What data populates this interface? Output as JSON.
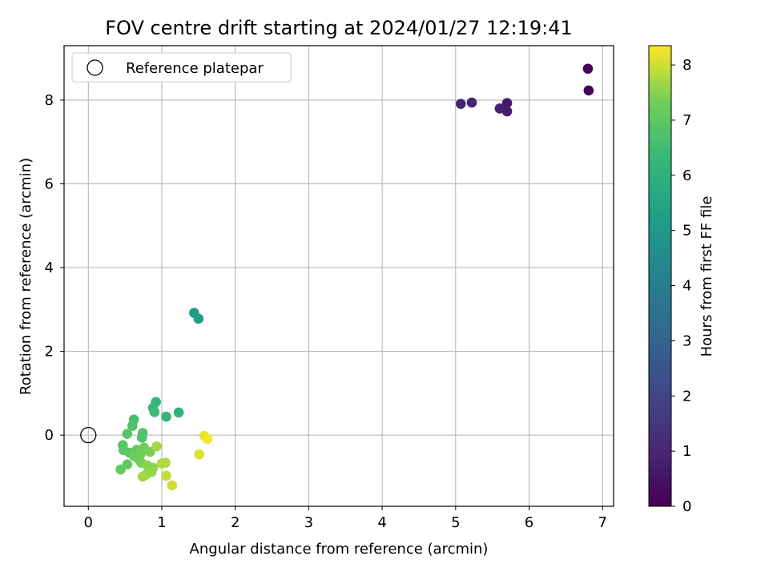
{
  "chart_data": {
    "type": "scatter",
    "title": "FOV centre drift starting at 2024/01/27 12:19:41",
    "xlabel": "Angular distance from reference (arcmin)",
    "ylabel": "Rotation from reference (arcmin)",
    "xlim": [
      -0.33,
      7.15
    ],
    "ylim": [
      -1.7,
      9.3
    ],
    "xticks": [
      0,
      1,
      2,
      3,
      4,
      5,
      6,
      7
    ],
    "yticks": [
      0,
      2,
      4,
      6,
      8
    ],
    "grid": true,
    "legend": {
      "position": "top-left",
      "entries": [
        "Reference platepar"
      ]
    },
    "reference_point": {
      "x": 0,
      "y": 0,
      "label": "Reference platepar"
    },
    "colorbar": {
      "label": "Hours from first FF file",
      "colormap": "viridis",
      "range": [
        0,
        8.35
      ],
      "ticks": [
        0,
        1,
        2,
        3,
        4,
        5,
        6,
        7,
        8
      ]
    },
    "points": [
      {
        "x": 6.8,
        "y": 8.75,
        "c": 0.05
      },
      {
        "x": 6.81,
        "y": 8.23,
        "c": 0.1
      },
      {
        "x": 5.7,
        "y": 7.93,
        "c": 0.7
      },
      {
        "x": 5.7,
        "y": 7.73,
        "c": 0.75
      },
      {
        "x": 5.6,
        "y": 7.8,
        "c": 0.8
      },
      {
        "x": 5.22,
        "y": 7.94,
        "c": 0.9
      },
      {
        "x": 5.07,
        "y": 7.91,
        "c": 0.95
      },
      {
        "x": 1.44,
        "y": 2.92,
        "c": 5.1
      },
      {
        "x": 1.5,
        "y": 2.78,
        "c": 5.2
      },
      {
        "x": 1.23,
        "y": 0.54,
        "c": 6.0
      },
      {
        "x": 1.06,
        "y": 0.44,
        "c": 6.1
      },
      {
        "x": 0.92,
        "y": 0.79,
        "c": 6.2
      },
      {
        "x": 0.88,
        "y": 0.65,
        "c": 6.3
      },
      {
        "x": 0.9,
        "y": 0.55,
        "c": 6.4
      },
      {
        "x": 0.62,
        "y": 0.37,
        "c": 6.6
      },
      {
        "x": 0.6,
        "y": 0.22,
        "c": 6.7
      },
      {
        "x": 0.74,
        "y": 0.05,
        "c": 6.8
      },
      {
        "x": 0.73,
        "y": -0.06,
        "c": 6.8
      },
      {
        "x": 0.53,
        "y": 0.03,
        "c": 6.9
      },
      {
        "x": 0.47,
        "y": -0.24,
        "c": 6.9
      },
      {
        "x": 0.48,
        "y": -0.36,
        "c": 7.0
      },
      {
        "x": 0.56,
        "y": -0.42,
        "c": 7.0
      },
      {
        "x": 0.66,
        "y": -0.35,
        "c": 7.1
      },
      {
        "x": 0.53,
        "y": -0.7,
        "c": 7.1
      },
      {
        "x": 0.44,
        "y": -0.82,
        "c": 7.1
      },
      {
        "x": 0.62,
        "y": -0.5,
        "c": 7.2
      },
      {
        "x": 0.69,
        "y": -0.58,
        "c": 7.2
      },
      {
        "x": 0.71,
        "y": -0.46,
        "c": 7.3
      },
      {
        "x": 0.76,
        "y": -0.3,
        "c": 7.3
      },
      {
        "x": 0.84,
        "y": -0.4,
        "c": 7.4
      },
      {
        "x": 0.72,
        "y": -0.66,
        "c": 7.4
      },
      {
        "x": 0.8,
        "y": -0.72,
        "c": 7.5
      },
      {
        "x": 0.88,
        "y": -0.78,
        "c": 7.5
      },
      {
        "x": 0.86,
        "y": -0.88,
        "c": 7.6
      },
      {
        "x": 0.78,
        "y": -0.95,
        "c": 7.6
      },
      {
        "x": 0.74,
        "y": -0.99,
        "c": 7.7
      },
      {
        "x": 0.93,
        "y": -0.27,
        "c": 7.7
      },
      {
        "x": 1.0,
        "y": -0.68,
        "c": 7.8
      },
      {
        "x": 1.05,
        "y": -0.66,
        "c": 7.8
      },
      {
        "x": 1.06,
        "y": -0.97,
        "c": 7.9
      },
      {
        "x": 1.14,
        "y": -1.2,
        "c": 8.0
      },
      {
        "x": 1.51,
        "y": -0.46,
        "c": 8.1
      },
      {
        "x": 1.58,
        "y": -0.02,
        "c": 8.2
      },
      {
        "x": 1.62,
        "y": -0.09,
        "c": 8.3
      }
    ]
  }
}
